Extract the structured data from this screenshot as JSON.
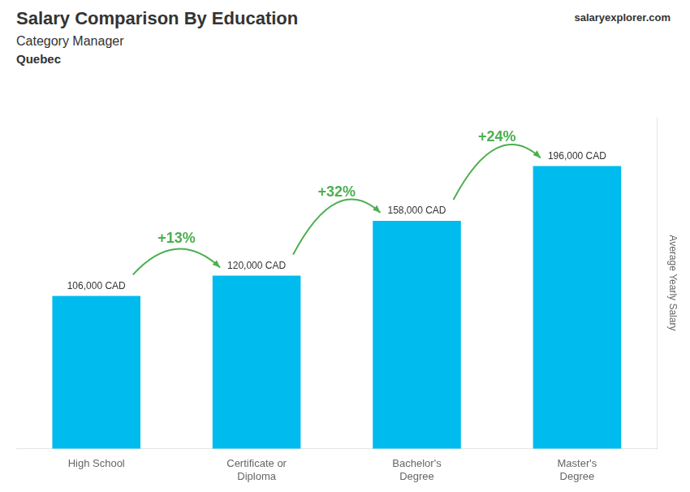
{
  "chart_data": {
    "type": "bar",
    "title": "Salary Comparison By Education",
    "subtitle": "Category Manager",
    "y_label": "Average Yearly Salary",
    "categories": [
      "High School",
      "Certificate or\nDiploma",
      "Bachelor's\nDegree",
      "Master's\nDegree"
    ],
    "values": [
      106000,
      120000,
      158000,
      196000
    ],
    "value_labels": [
      "106,000 CAD",
      "120,000 CAD",
      "158,000 CAD",
      "196,000 CAD"
    ],
    "data_labels": true,
    "color": "#00bbee",
    "ylim": [
      0,
      230000
    ],
    "grid": false,
    "tick_labels": "x",
    "annotations": [
      {
        "text": "Quebec"
      },
      {
        "text": "salaryexplorer.com"
      },
      {
        "text": "+13%",
        "from": "High School",
        "to": "Certificate or\nDiploma"
      },
      {
        "text": "+32%",
        "from": "Certificate or\nDiploma",
        "to": "Bachelor's\nDegree"
      },
      {
        "text": "+24%",
        "from": "Bachelor's\nDegree",
        "to": "Master's\nDegree"
      }
    ]
  }
}
